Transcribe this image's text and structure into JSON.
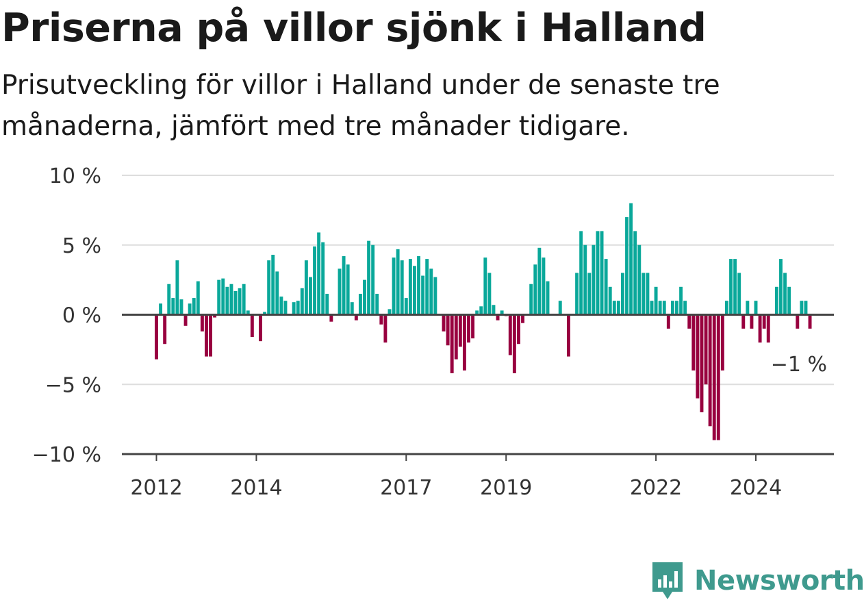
{
  "title": "Priserna på villor sjönk i Halland",
  "subtitle": "Prisutveckling för villor i Halland under de senaste tre månaderna, jämfört med tre månader tidigare.",
  "branding": {
    "name": "Newsworthy",
    "icon": "newsworthy-logo-icon",
    "color": "#3f9a8e"
  },
  "colors": {
    "positive": "#0aa89a",
    "negative": "#98003f",
    "grid": "#dddddd",
    "axis": "#444444"
  },
  "chart_data": {
    "type": "bar",
    "title": "Priserna på villor sjönk i Halland",
    "subtitle": "Prisutveckling för villor i Halland under de senaste tre månaderna, jämfört med tre månader tidigare.",
    "xlabel": "",
    "ylabel": "",
    "unit": "%",
    "ylim": [
      -10,
      10
    ],
    "grid": true,
    "yticks": [
      {
        "value": 10,
        "label": "10 %"
      },
      {
        "value": 5,
        "label": "5 %"
      },
      {
        "value": 0,
        "label": "0 %"
      },
      {
        "value": -5,
        "label": "−5 %"
      },
      {
        "value": -10,
        "label": "−10 %"
      }
    ],
    "xticks": [
      {
        "date": "2012-01",
        "label": "2012"
      },
      {
        "date": "2014-01",
        "label": "2014"
      },
      {
        "date": "2017-01",
        "label": "2017"
      },
      {
        "date": "2019-01",
        "label": "2019"
      },
      {
        "date": "2022-01",
        "label": "2022"
      },
      {
        "date": "2024-01",
        "label": "2024"
      }
    ],
    "last_value_label": "−1 %",
    "series": [
      {
        "values": [
          {
            "date": "2012-01",
            "value": -3.2
          },
          {
            "date": "2012-02",
            "value": 0.8
          },
          {
            "date": "2012-03",
            "value": -2.1
          },
          {
            "date": "2012-04",
            "value": 2.2
          },
          {
            "date": "2012-05",
            "value": 1.2
          },
          {
            "date": "2012-06",
            "value": 3.9
          },
          {
            "date": "2012-07",
            "value": 1.1
          },
          {
            "date": "2012-08",
            "value": -0.8
          },
          {
            "date": "2012-09",
            "value": 0.8
          },
          {
            "date": "2012-10",
            "value": 1.2
          },
          {
            "date": "2012-11",
            "value": 2.4
          },
          {
            "date": "2012-12",
            "value": -1.2
          },
          {
            "date": "2013-01",
            "value": -3.0
          },
          {
            "date": "2013-02",
            "value": -3.0
          },
          {
            "date": "2013-03",
            "value": -0.2
          },
          {
            "date": "2013-04",
            "value": 2.5
          },
          {
            "date": "2013-05",
            "value": 2.6
          },
          {
            "date": "2013-06",
            "value": 2.0
          },
          {
            "date": "2013-07",
            "value": 2.2
          },
          {
            "date": "2013-08",
            "value": 1.7
          },
          {
            "date": "2013-09",
            "value": 1.9
          },
          {
            "date": "2013-10",
            "value": 2.2
          },
          {
            "date": "2013-11",
            "value": 0.3
          },
          {
            "date": "2013-12",
            "value": -1.6
          },
          {
            "date": "2014-01",
            "value": 0.0
          },
          {
            "date": "2014-02",
            "value": -1.9
          },
          {
            "date": "2014-03",
            "value": 0.2
          },
          {
            "date": "2014-04",
            "value": 3.9
          },
          {
            "date": "2014-05",
            "value": 4.3
          },
          {
            "date": "2014-06",
            "value": 3.1
          },
          {
            "date": "2014-07",
            "value": 1.3
          },
          {
            "date": "2014-08",
            "value": 1.0
          },
          {
            "date": "2014-09",
            "value": 0.0
          },
          {
            "date": "2014-10",
            "value": 0.9
          },
          {
            "date": "2014-11",
            "value": 1.0
          },
          {
            "date": "2014-12",
            "value": 1.9
          },
          {
            "date": "2015-01",
            "value": 3.9
          },
          {
            "date": "2015-02",
            "value": 2.7
          },
          {
            "date": "2015-03",
            "value": 4.9
          },
          {
            "date": "2015-04",
            "value": 5.9
          },
          {
            "date": "2015-05",
            "value": 5.2
          },
          {
            "date": "2015-06",
            "value": 1.5
          },
          {
            "date": "2015-07",
            "value": -0.5
          },
          {
            "date": "2015-08",
            "value": 0.0
          },
          {
            "date": "2015-09",
            "value": 3.3
          },
          {
            "date": "2015-10",
            "value": 4.2
          },
          {
            "date": "2015-11",
            "value": 3.6
          },
          {
            "date": "2015-12",
            "value": 0.9
          },
          {
            "date": "2016-01",
            "value": -0.4
          },
          {
            "date": "2016-02",
            "value": 1.5
          },
          {
            "date": "2016-03",
            "value": 2.5
          },
          {
            "date": "2016-04",
            "value": 5.3
          },
          {
            "date": "2016-05",
            "value": 5.0
          },
          {
            "date": "2016-06",
            "value": 1.5
          },
          {
            "date": "2016-07",
            "value": -0.7
          },
          {
            "date": "2016-08",
            "value": -2.0
          },
          {
            "date": "2016-09",
            "value": 0.4
          },
          {
            "date": "2016-10",
            "value": 4.1
          },
          {
            "date": "2016-11",
            "value": 4.7
          },
          {
            "date": "2016-12",
            "value": 3.9
          },
          {
            "date": "2017-01",
            "value": 1.2
          },
          {
            "date": "2017-02",
            "value": 4.0
          },
          {
            "date": "2017-03",
            "value": 3.5
          },
          {
            "date": "2017-04",
            "value": 4.2
          },
          {
            "date": "2017-05",
            "value": 2.8
          },
          {
            "date": "2017-06",
            "value": 4.0
          },
          {
            "date": "2017-07",
            "value": 3.3
          },
          {
            "date": "2017-08",
            "value": 2.7
          },
          {
            "date": "2017-09",
            "value": 0.0
          },
          {
            "date": "2017-10",
            "value": -1.2
          },
          {
            "date": "2017-11",
            "value": -2.2
          },
          {
            "date": "2017-12",
            "value": -4.2
          },
          {
            "date": "2018-01",
            "value": -3.2
          },
          {
            "date": "2018-02",
            "value": -2.3
          },
          {
            "date": "2018-03",
            "value": -4.0
          },
          {
            "date": "2018-04",
            "value": -2.0
          },
          {
            "date": "2018-05",
            "value": -1.7
          },
          {
            "date": "2018-06",
            "value": 0.3
          },
          {
            "date": "2018-07",
            "value": 0.6
          },
          {
            "date": "2018-08",
            "value": 4.1
          },
          {
            "date": "2018-09",
            "value": 3.0
          },
          {
            "date": "2018-10",
            "value": 0.7
          },
          {
            "date": "2018-11",
            "value": -0.4
          },
          {
            "date": "2018-12",
            "value": 0.3
          },
          {
            "date": "2019-01",
            "value": -0.1
          },
          {
            "date": "2019-02",
            "value": -2.9
          },
          {
            "date": "2019-03",
            "value": -4.2
          },
          {
            "date": "2019-04",
            "value": -2.1
          },
          {
            "date": "2019-05",
            "value": -0.6
          },
          {
            "date": "2019-06",
            "value": 0.0
          },
          {
            "date": "2019-07",
            "value": 2.2
          },
          {
            "date": "2019-08",
            "value": 3.6
          },
          {
            "date": "2019-09",
            "value": 4.8
          },
          {
            "date": "2019-10",
            "value": 4.1
          },
          {
            "date": "2019-11",
            "value": 2.4
          },
          {
            "date": "2019-12",
            "value": 0.0
          },
          {
            "date": "2020-01",
            "value": 0.0
          },
          {
            "date": "2020-02",
            "value": 1.0
          },
          {
            "date": "2020-03",
            "value": 0.0
          },
          {
            "date": "2020-04",
            "value": -3.0
          },
          {
            "date": "2020-05",
            "value": 0.0
          },
          {
            "date": "2020-06",
            "value": 3.0
          },
          {
            "date": "2020-07",
            "value": 6.0
          },
          {
            "date": "2020-08",
            "value": 5.0
          },
          {
            "date": "2020-09",
            "value": 3.0
          },
          {
            "date": "2020-10",
            "value": 5.0
          },
          {
            "date": "2020-11",
            "value": 6.0
          },
          {
            "date": "2020-12",
            "value": 6.0
          },
          {
            "date": "2021-01",
            "value": 4.0
          },
          {
            "date": "2021-02",
            "value": 2.0
          },
          {
            "date": "2021-03",
            "value": 1.0
          },
          {
            "date": "2021-04",
            "value": 1.0
          },
          {
            "date": "2021-05",
            "value": 3.0
          },
          {
            "date": "2021-06",
            "value": 7.0
          },
          {
            "date": "2021-07",
            "value": 8.0
          },
          {
            "date": "2021-08",
            "value": 6.0
          },
          {
            "date": "2021-09",
            "value": 5.0
          },
          {
            "date": "2021-10",
            "value": 3.0
          },
          {
            "date": "2021-11",
            "value": 3.0
          },
          {
            "date": "2021-12",
            "value": 1.0
          },
          {
            "date": "2022-01",
            "value": 2.0
          },
          {
            "date": "2022-02",
            "value": 1.0
          },
          {
            "date": "2022-03",
            "value": 1.0
          },
          {
            "date": "2022-04",
            "value": -1.0
          },
          {
            "date": "2022-05",
            "value": 1.0
          },
          {
            "date": "2022-06",
            "value": 1.0
          },
          {
            "date": "2022-07",
            "value": 2.0
          },
          {
            "date": "2022-08",
            "value": 1.0
          },
          {
            "date": "2022-09",
            "value": -1.0
          },
          {
            "date": "2022-10",
            "value": -4.0
          },
          {
            "date": "2022-11",
            "value": -6.0
          },
          {
            "date": "2022-12",
            "value": -7.0
          },
          {
            "date": "2023-01",
            "value": -5.0
          },
          {
            "date": "2023-02",
            "value": -8.0
          },
          {
            "date": "2023-03",
            "value": -9.0
          },
          {
            "date": "2023-04",
            "value": -9.0
          },
          {
            "date": "2023-05",
            "value": -4.0
          },
          {
            "date": "2023-06",
            "value": 1.0
          },
          {
            "date": "2023-07",
            "value": 4.0
          },
          {
            "date": "2023-08",
            "value": 4.0
          },
          {
            "date": "2023-09",
            "value": 3.0
          },
          {
            "date": "2023-10",
            "value": -1.0
          },
          {
            "date": "2023-11",
            "value": 1.0
          },
          {
            "date": "2023-12",
            "value": -1.0
          },
          {
            "date": "2024-01",
            "value": 1.0
          },
          {
            "date": "2024-02",
            "value": -2.0
          },
          {
            "date": "2024-03",
            "value": -1.0
          },
          {
            "date": "2024-04",
            "value": -2.0
          },
          {
            "date": "2024-05",
            "value": 0.0
          },
          {
            "date": "2024-06",
            "value": 2.0
          },
          {
            "date": "2024-07",
            "value": 4.0
          },
          {
            "date": "2024-08",
            "value": 3.0
          },
          {
            "date": "2024-09",
            "value": 2.0
          },
          {
            "date": "2024-10",
            "value": 0.0
          },
          {
            "date": "2024-11",
            "value": -1.0
          },
          {
            "date": "2024-12",
            "value": 1.0
          },
          {
            "date": "2025-01",
            "value": 1.0
          },
          {
            "date": "2025-02",
            "value": -1.0
          }
        ]
      }
    ]
  }
}
